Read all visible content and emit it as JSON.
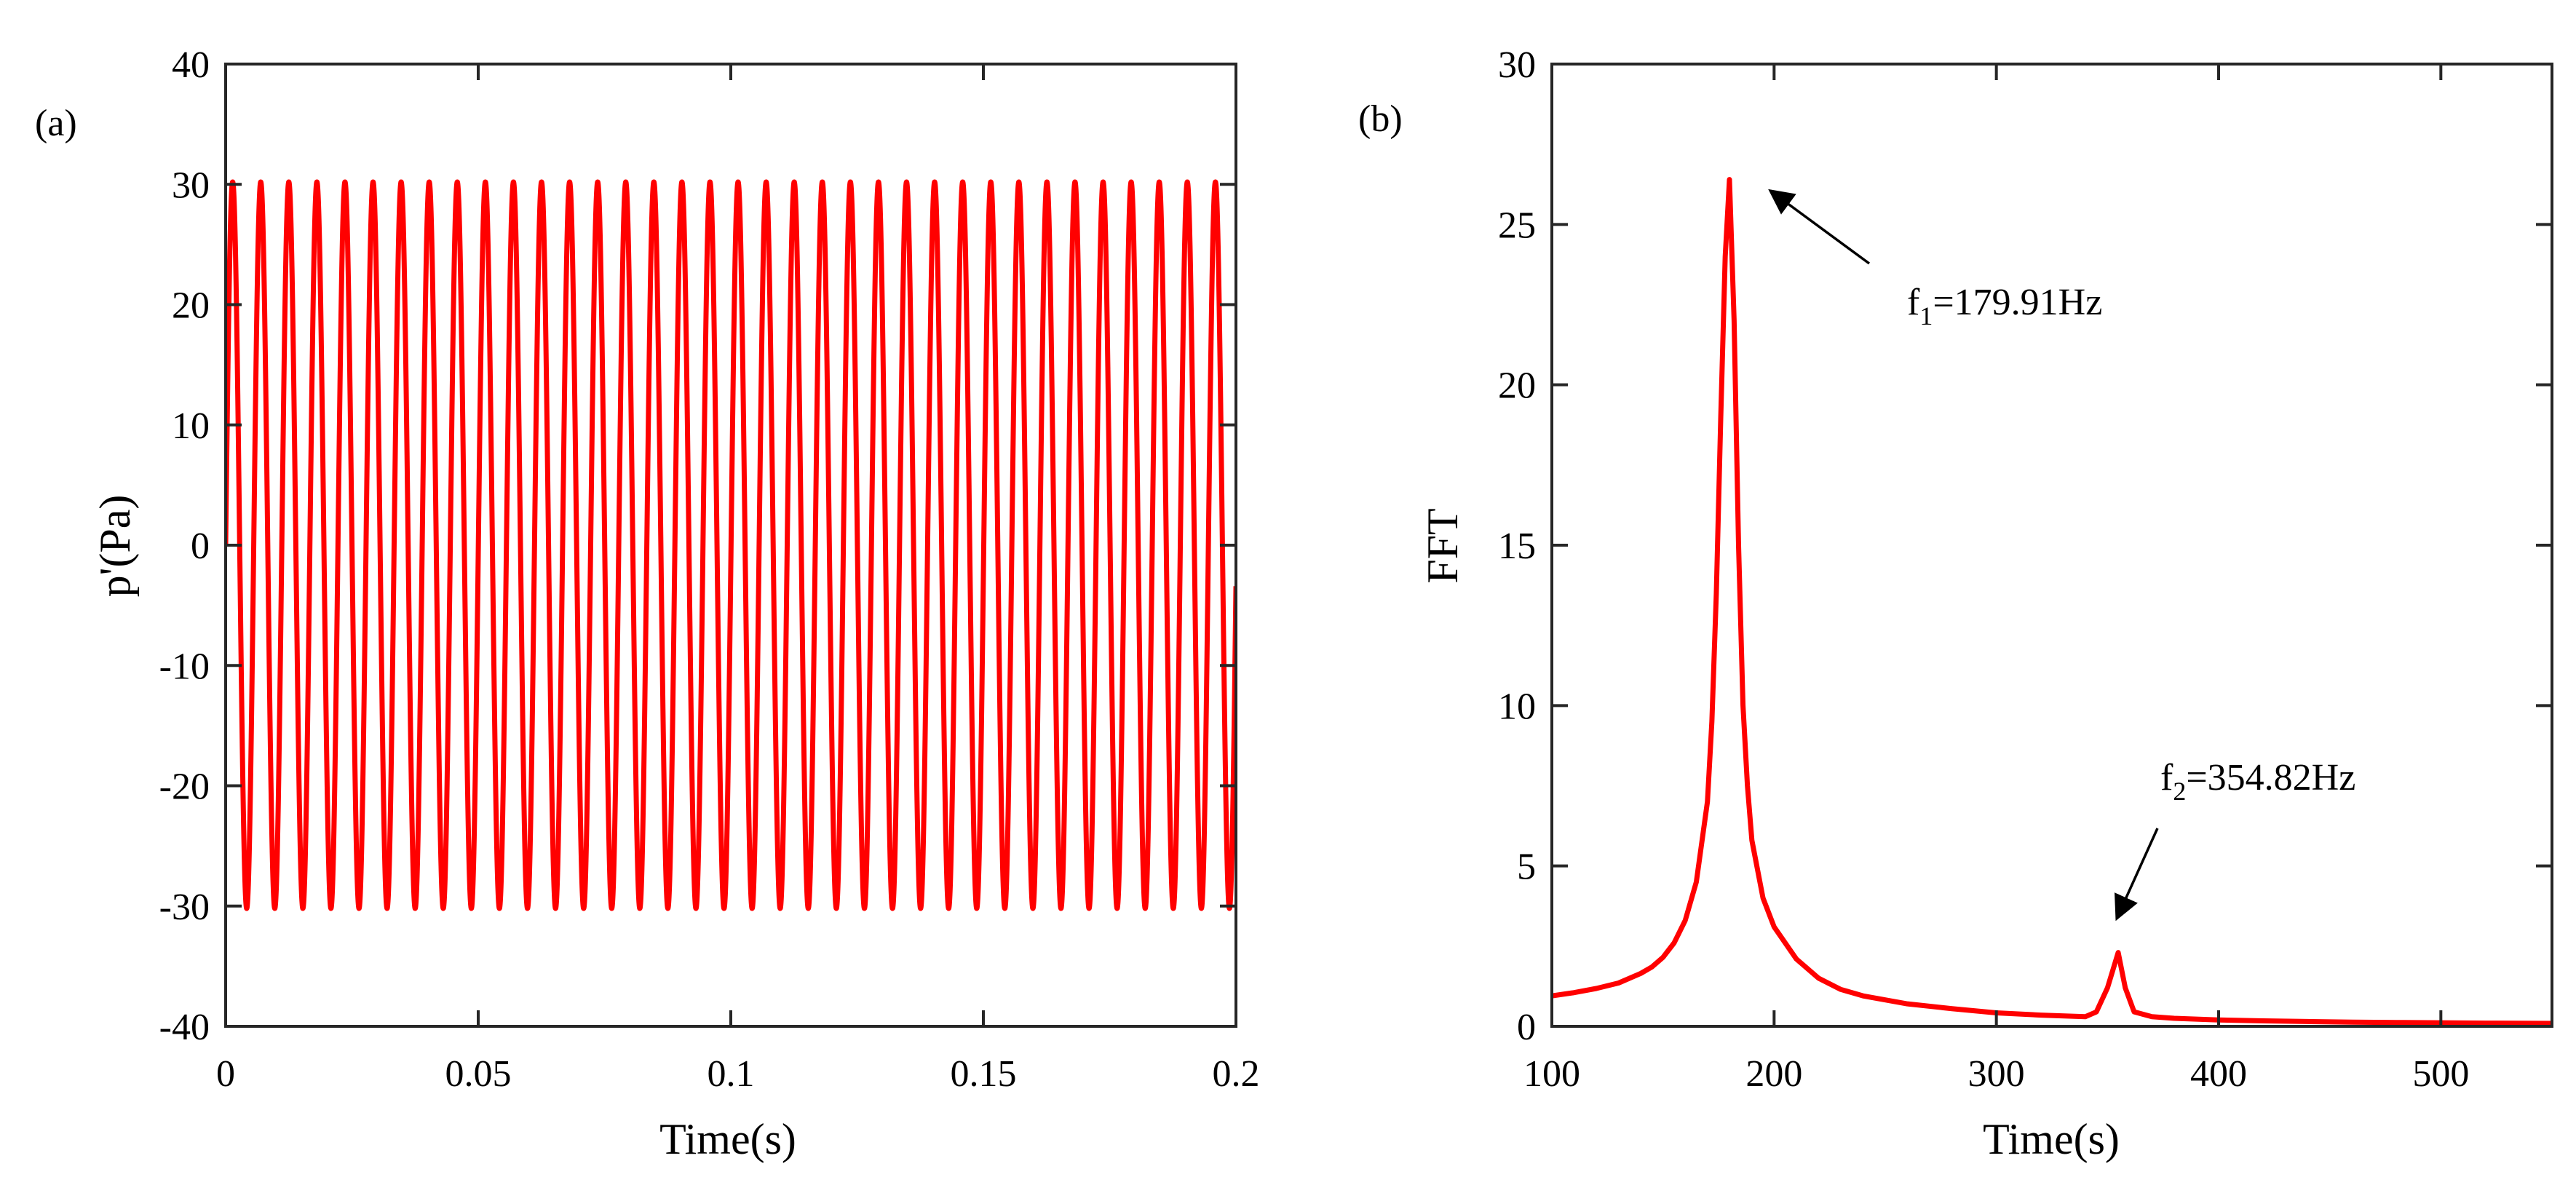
{
  "figure": {
    "panels": [
      {
        "tag": "(a)"
      },
      {
        "tag": "(b)"
      }
    ]
  },
  "chart_data": [
    {
      "type": "line",
      "panel": "(a)",
      "title": "",
      "xlabel": "Time(s)",
      "ylabel": "p'(Pa)",
      "xlim": [
        0,
        0.2
      ],
      "ylim": [
        -40,
        40
      ],
      "xticks": [
        0,
        0.05,
        0.1,
        0.15,
        0.2
      ],
      "xtick_labels": [
        "0",
        "0.05",
        "0.1",
        "0.15",
        "0.2"
      ],
      "yticks": [
        -40,
        -30,
        -20,
        -10,
        0,
        10,
        20,
        30,
        40
      ],
      "ytick_labels": [
        "-40",
        "-30",
        "-20",
        "-10",
        "0",
        "10",
        "20",
        "30",
        "40"
      ],
      "grid": false,
      "series": [
        {
          "color": "#ff0000",
          "function": "sine",
          "amplitude": 30.2,
          "frequency_hz": 179.91,
          "phase": 0,
          "x_start": 0,
          "x_end": 0.2
        }
      ]
    },
    {
      "type": "line",
      "panel": "(b)",
      "title": "",
      "xlabel": "Time(s)",
      "ylabel": "FFT",
      "xlim": [
        100,
        550
      ],
      "ylim": [
        0,
        30
      ],
      "xticks": [
        100,
        200,
        300,
        400,
        500
      ],
      "xtick_labels": [
        "100",
        "200",
        "300",
        "400",
        "500"
      ],
      "yticks": [
        0,
        5,
        10,
        15,
        20,
        25,
        30
      ],
      "ytick_labels": [
        "0",
        "5",
        "10",
        "15",
        "20",
        "25",
        "30"
      ],
      "grid": false,
      "series": [
        {
          "color": "#ff0000",
          "x": [
            100,
            110,
            120,
            130,
            140,
            145,
            150,
            155,
            160,
            165,
            170,
            172,
            174,
            176,
            178,
            179.91,
            182,
            184,
            186,
            188,
            190,
            195,
            200,
            210,
            220,
            230,
            240,
            260,
            280,
            300,
            320,
            340,
            345,
            350,
            354.82,
            358,
            362,
            370,
            380,
            400,
            420,
            440,
            460,
            480,
            500,
            520,
            550
          ],
          "y": [
            0.95,
            1.05,
            1.18,
            1.35,
            1.65,
            1.85,
            2.15,
            2.6,
            3.3,
            4.5,
            7.0,
            9.5,
            13.5,
            19.0,
            24.0,
            26.4,
            22.0,
            15.0,
            10.0,
            7.5,
            5.8,
            4.0,
            3.1,
            2.1,
            1.5,
            1.15,
            0.95,
            0.7,
            0.55,
            0.42,
            0.35,
            0.3,
            0.45,
            1.2,
            2.3,
            1.2,
            0.45,
            0.3,
            0.25,
            0.2,
            0.17,
            0.15,
            0.13,
            0.12,
            0.11,
            0.1,
            0.09
          ]
        }
      ],
      "annotations": [
        {
          "base": "f",
          "sub": "1",
          "rest": "=179.91Hz",
          "target_x": 179.91,
          "target_y": 26.4
        },
        {
          "base": "f",
          "sub": "2",
          "rest": "=354.82Hz",
          "target_x": 354.82,
          "target_y": 2.3
        }
      ]
    }
  ]
}
